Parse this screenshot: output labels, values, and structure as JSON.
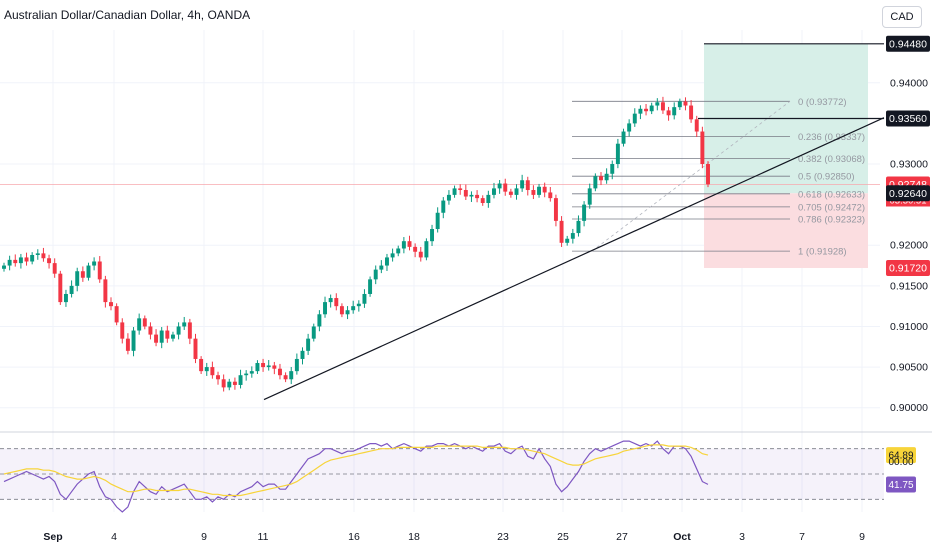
{
  "header": {
    "symbol_title": "Australian Dollar/Canadian Dollar, 4h, OANDA",
    "currency_button": "CAD"
  },
  "colors": {
    "up": "#089981",
    "down": "#f23645",
    "rsi_line": "#7e57c2",
    "rsi_ma": "#f7d43a",
    "profit_zone": "#d7efe8",
    "loss_zone": "#fbdde0",
    "grid": "#f0f3fa"
  },
  "chart_data": [
    {
      "type": "candlestick",
      "title": "Australian Dollar/Canadian Dollar, 4h, OANDA",
      "ylabel": "CAD",
      "ylim": [
        0.8975,
        0.9465
      ],
      "y_ticks": [
        "0.94000",
        "0.93000",
        "0.92000",
        "0.91500",
        "0.91000",
        "0.90500",
        "0.90000"
      ],
      "x_ticks": [
        "Sep",
        "4",
        "9",
        "11",
        "16",
        "18",
        "23",
        "25",
        "27",
        "Oct",
        "3",
        "7",
        "9"
      ],
      "price_path": [
        0.9175,
        0.9182,
        0.9178,
        0.9185,
        0.918,
        0.9188,
        0.919,
        0.9184,
        0.9178,
        0.9165,
        0.913,
        0.914,
        0.915,
        0.9168,
        0.916,
        0.9175,
        0.918,
        0.9158,
        0.913,
        0.9125,
        0.9105,
        0.9085,
        0.907,
        0.9095,
        0.911,
        0.91,
        0.909,
        0.908,
        0.9095,
        0.9085,
        0.909,
        0.91,
        0.9105,
        0.9085,
        0.906,
        0.9045,
        0.905,
        0.904,
        0.9035,
        0.9025,
        0.9032,
        0.9028,
        0.904,
        0.9042,
        0.9045,
        0.9055,
        0.905,
        0.9052,
        0.9048,
        0.904,
        0.9035,
        0.9045,
        0.906,
        0.907,
        0.9085,
        0.91,
        0.9115,
        0.913,
        0.9135,
        0.9125,
        0.9115,
        0.912,
        0.9125,
        0.9128,
        0.914,
        0.9158,
        0.917,
        0.9175,
        0.9185,
        0.919,
        0.9196,
        0.9205,
        0.9198,
        0.9192,
        0.9185,
        0.9205,
        0.922,
        0.924,
        0.9255,
        0.9262,
        0.927,
        0.9268,
        0.926,
        0.9262,
        0.9258,
        0.9252,
        0.9262,
        0.927,
        0.9276,
        0.9266,
        0.9262,
        0.927,
        0.928,
        0.9268,
        0.9262,
        0.9272,
        0.9265,
        0.9258,
        0.923,
        0.9203,
        0.9208,
        0.9215,
        0.923,
        0.925,
        0.927,
        0.9285,
        0.928,
        0.9288,
        0.93,
        0.9325,
        0.934,
        0.935,
        0.9362,
        0.9368,
        0.9365,
        0.9372,
        0.9376,
        0.9366,
        0.936,
        0.937,
        0.9377,
        0.9372,
        0.9355,
        0.934,
        0.93,
        0.9275
      ],
      "last_price": "0.92748",
      "countdown": "03:30:51",
      "trendline": {
        "from_price": 0.901,
        "to_price": 0.9357
      },
      "fibonacci": [
        {
          "level": "0 (0.93772)",
          "price": 0.93772
        },
        {
          "level": "0.236 (0.93337)",
          "price": 0.93337
        },
        {
          "level": "0.382 (0.93068)",
          "price": 0.93068
        },
        {
          "level": "0.5 (0.92850)",
          "price": 0.9285
        },
        {
          "level": "0.618 (0.92633)",
          "price": 0.92633
        },
        {
          "level": "0.705 (0.92472)",
          "price": 0.92472
        },
        {
          "level": "0.786 (0.92323)",
          "price": 0.92323
        },
        {
          "level": "1 (0.91928)",
          "price": 0.91928
        }
      ],
      "position": {
        "target": 0.9448,
        "target_label": "0.94480",
        "entry": 0.9264,
        "entry_label": "0.92640",
        "stop": 0.9172,
        "stop_label": "0.91720",
        "level_line": 0.9356,
        "level_label": "0.93560"
      }
    },
    {
      "type": "line",
      "title": "",
      "ylim": [
        20,
        80
      ],
      "reference_lines": [
        70,
        50,
        30
      ],
      "series": [
        {
          "name": "",
          "last_value": "41.75",
          "values": [
            44,
            46,
            48,
            50,
            52,
            50,
            48,
            46,
            48,
            44,
            34,
            30,
            36,
            42,
            46,
            50,
            52,
            40,
            32,
            30,
            24,
            20,
            24,
            36,
            44,
            40,
            36,
            34,
            40,
            36,
            38,
            40,
            42,
            36,
            30,
            30,
            32,
            28,
            32,
            30,
            34,
            32,
            36,
            38,
            40,
            44,
            40,
            42,
            42,
            38,
            38,
            44,
            50,
            56,
            62,
            64,
            66,
            70,
            70,
            68,
            66,
            68,
            68,
            70,
            72,
            74,
            74,
            72,
            74,
            70,
            72,
            74,
            72,
            70,
            68,
            72,
            72,
            74,
            74,
            72,
            74,
            72,
            70,
            72,
            70,
            68,
            72,
            72,
            74,
            68,
            66,
            70,
            72,
            64,
            62,
            70,
            62,
            56,
            42,
            36,
            40,
            46,
            52,
            60,
            66,
            70,
            68,
            70,
            72,
            74,
            76,
            76,
            74,
            72,
            74,
            72,
            76,
            70,
            66,
            72,
            72,
            70,
            64,
            54,
            44,
            41.75
          ]
        },
        {
          "name": "",
          "last_value": "64.89",
          "values": [
            50,
            51,
            52,
            53,
            54,
            54,
            54,
            53,
            53,
            52,
            50,
            48,
            47,
            46,
            46,
            47,
            48,
            47,
            45,
            42,
            40,
            38,
            36,
            36,
            37,
            38,
            38,
            37,
            37,
            37,
            37,
            37,
            38,
            38,
            37,
            36,
            35,
            34,
            34,
            33,
            33,
            33,
            33,
            34,
            35,
            36,
            37,
            38,
            39,
            40,
            41,
            42,
            44,
            47,
            50,
            53,
            56,
            59,
            61,
            62,
            63,
            64,
            65,
            66,
            67,
            68,
            69,
            70,
            70,
            70,
            71,
            71,
            71,
            71,
            71,
            71,
            71,
            72,
            72,
            72,
            72,
            72,
            72,
            72,
            72,
            71,
            71,
            71,
            71,
            71,
            70,
            70,
            70,
            69,
            68,
            67,
            66,
            64,
            62,
            60,
            58,
            57,
            57,
            58,
            60,
            62,
            63,
            64,
            65,
            66,
            68,
            69,
            70,
            71,
            72,
            73,
            73,
            73,
            72,
            72,
            72,
            72,
            71,
            69,
            66,
            64.89
          ]
        }
      ],
      "y_labels": [
        "64.89",
        "00.00",
        "41.75"
      ]
    }
  ]
}
